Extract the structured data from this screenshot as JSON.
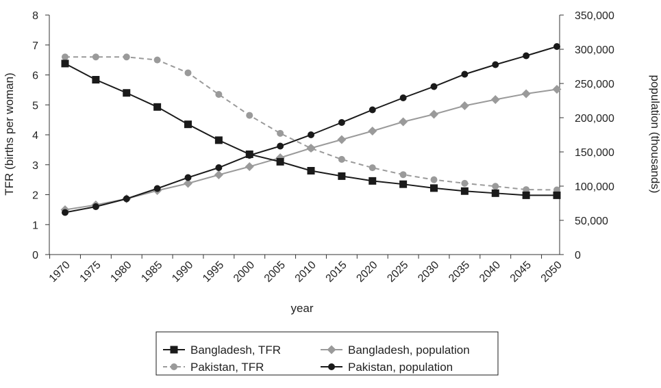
{
  "chart_data": {
    "type": "line",
    "xlabel": "year",
    "ylabel_left": "TFR (births per woman)",
    "ylabel_right": "population (thousands)",
    "x": [
      1970,
      1975,
      1980,
      1985,
      1990,
      1995,
      2000,
      2005,
      2010,
      2015,
      2020,
      2025,
      2030,
      2035,
      2040,
      2045,
      2050
    ],
    "x_tick_labels": [
      "1970",
      "1975",
      "1980",
      "1985",
      "1990",
      "1995",
      "2000",
      "2005",
      "2010",
      "2015",
      "2020",
      "2025",
      "2030",
      "2035",
      "2040",
      "2045",
      "2050"
    ],
    "y_left_range": [
      0,
      8
    ],
    "y_left_ticks": [
      0,
      1,
      2,
      3,
      4,
      5,
      6,
      7,
      8
    ],
    "y_left_tick_labels": [
      "0",
      "1",
      "2",
      "3",
      "4",
      "5",
      "6",
      "7",
      "8"
    ],
    "y_right_range": [
      0,
      350000
    ],
    "y_right_ticks": [
      0,
      50000,
      100000,
      150000,
      200000,
      250000,
      300000,
      350000
    ],
    "y_right_tick_labels": [
      "0",
      "50,000",
      "100,000",
      "150,000",
      "200,000",
      "250,000",
      "300,000",
      "350,000"
    ],
    "grid": false,
    "legend_position": "bottom",
    "series": [
      {
        "name": "Bangladesh, TFR",
        "axis": "left",
        "marker": "square",
        "color": "#1a1a1a",
        "dash": "solid",
        "values": [
          6.38,
          5.84,
          5.4,
          4.93,
          4.35,
          3.82,
          3.35,
          3.1,
          2.8,
          2.62,
          2.46,
          2.35,
          2.22,
          2.12,
          2.05,
          1.98,
          1.98
        ]
      },
      {
        "name": "Bangladesh, population",
        "axis": "right",
        "marker": "diamond",
        "color": "#9a9a9a",
        "dash": "solid",
        "values": [
          65500,
          72500,
          81500,
          93500,
          104000,
          116500,
          128500,
          141500,
          155500,
          168000,
          180500,
          194000,
          205000,
          217500,
          226500,
          235000,
          241500
        ]
      },
      {
        "name": "Pakistan, TFR",
        "axis": "left",
        "marker": "circle",
        "color": "#9a9a9a",
        "dash": "dashed",
        "values": [
          6.6,
          6.6,
          6.6,
          6.5,
          6.07,
          5.35,
          4.65,
          4.05,
          3.55,
          3.18,
          2.9,
          2.67,
          2.5,
          2.38,
          2.28,
          2.17,
          2.16
        ]
      },
      {
        "name": "Pakistan, population",
        "axis": "right",
        "marker": "circle",
        "color": "#1a1a1a",
        "dash": "solid",
        "values": [
          61500,
          70000,
          81500,
          96500,
          112500,
          127000,
          145000,
          158500,
          175000,
          193000,
          211500,
          229000,
          245500,
          263500,
          277500,
          290500,
          304000
        ]
      }
    ]
  }
}
